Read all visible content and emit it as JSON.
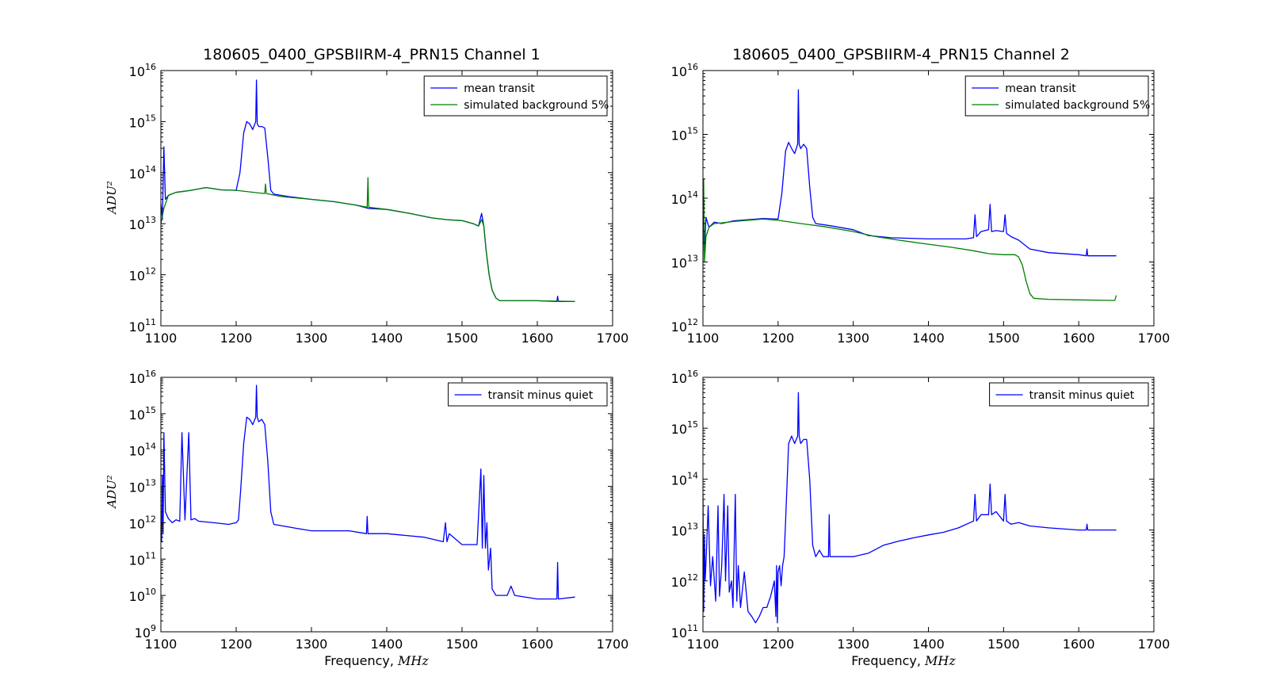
{
  "figure": {
    "xlabel_prefix": "Frequency, ",
    "xlabel_unit": "MHz",
    "ylabel": "ADU²"
  },
  "chart_data": [
    {
      "type": "line",
      "title": "180605_0400_GPSBIIRM-4_PRN15 Channel 1",
      "xlabel": "",
      "ylabel": "ADU²",
      "xlim": [
        1100,
        1700
      ],
      "ylim_exp": [
        11,
        16
      ],
      "yscale": "log",
      "xticks": [
        1100,
        1200,
        1300,
        1400,
        1500,
        1600,
        1700
      ],
      "yticks_exp": [
        11,
        12,
        13,
        14,
        15,
        16
      ],
      "legend": "top-right",
      "series": [
        {
          "name": "mean transit",
          "color": "#0000ff",
          "x": [
            1100,
            1102,
            1104,
            1106,
            1110,
            1120,
            1140,
            1160,
            1180,
            1200,
            1205,
            1210,
            1214,
            1218,
            1222,
            1226,
            1227,
            1228,
            1230,
            1234,
            1238,
            1242,
            1246,
            1250,
            1270,
            1300,
            1330,
            1360,
            1375,
            1400,
            1430,
            1460,
            1480,
            1500,
            1515,
            1522,
            1526,
            1529,
            1532,
            1536,
            1540,
            1545,
            1550,
            1560,
            1600,
            1626,
            1627,
            1628,
            1650
          ],
          "y": [
            25000000000000.0,
            12000000000000.0,
            320000000000000.0,
            30000000000000.0,
            36000000000000.0,
            41000000000000.0,
            45000000000000.0,
            51000000000000.0,
            46000000000000.0,
            45000000000000.0,
            100000000000000.0,
            600000000000000.0,
            1000000000000000.0,
            900000000000000.0,
            700000000000000.0,
            1000000000000000.0,
            6500000000000000.0,
            900000000000000.0,
            800000000000000.0,
            800000000000000.0,
            750000000000000.0,
            200000000000000.0,
            45000000000000.0,
            38000000000000.0,
            34000000000000.0,
            30000000000000.0,
            27000000000000.0,
            23000000000000.0,
            20000000000000.0,
            19000000000000.0,
            16000000000000.0,
            13000000000000.0,
            12000000000000.0,
            11500000000000.0,
            10000000000000.0,
            9000000000000.0,
            16000000000000.0,
            9000000000000.0,
            3000000000000.0,
            1000000000000.0,
            500000000000.0,
            350000000000.0,
            310000000000.0,
            310000000000.0,
            310000000000.0,
            300000000000.0,
            380000000000.0,
            300000000000.0,
            300000000000.0
          ]
        },
        {
          "name": "simulated background 5%",
          "color": "#008000",
          "x": [
            1100,
            1104,
            1110,
            1120,
            1140,
            1160,
            1180,
            1200,
            1230,
            1238,
            1239,
            1240,
            1260,
            1300,
            1330,
            1360,
            1374,
            1375,
            1376,
            1400,
            1430,
            1460,
            1480,
            1500,
            1515,
            1522,
            1526,
            1529,
            1532,
            1536,
            1540,
            1545,
            1550,
            1600,
            1650
          ],
          "y": [
            10000000000000.0,
            20000000000000.0,
            36000000000000.0,
            41000000000000.0,
            45000000000000.0,
            51000000000000.0,
            46000000000000.0,
            45000000000000.0,
            40000000000000.0,
            39000000000000.0,
            60000000000000.0,
            39000000000000.0,
            34000000000000.0,
            30000000000000.0,
            27000000000000.0,
            23000000000000.0,
            21000000000000.0,
            80000000000000.0,
            21000000000000.0,
            19000000000000.0,
            16000000000000.0,
            13000000000000.0,
            12000000000000.0,
            11500000000000.0,
            10000000000000.0,
            9000000000000.0,
            12000000000000.0,
            9000000000000.0,
            3000000000000.0,
            1000000000000.0,
            500000000000.0,
            350000000000.0,
            310000000000.0,
            310000000000.0,
            300000000000.0
          ]
        }
      ]
    },
    {
      "type": "line",
      "title": "180605_0400_GPSBIIRM-4_PRN15 Channel 2",
      "xlabel": "",
      "ylabel": "",
      "xlim": [
        1100,
        1700
      ],
      "ylim_exp": [
        12,
        16
      ],
      "yscale": "log",
      "xticks": [
        1100,
        1200,
        1300,
        1400,
        1500,
        1600,
        1700
      ],
      "yticks_exp": [
        12,
        13,
        14,
        15,
        16
      ],
      "legend": "top-right",
      "series": [
        {
          "name": "mean transit",
          "color": "#0000ff",
          "x": [
            1100,
            1102,
            1104,
            1108,
            1115,
            1125,
            1140,
            1160,
            1180,
            1200,
            1205,
            1210,
            1214,
            1218,
            1222,
            1226,
            1227,
            1228,
            1230,
            1234,
            1238,
            1242,
            1246,
            1250,
            1270,
            1300,
            1320,
            1350,
            1400,
            1450,
            1460,
            1462,
            1464,
            1470,
            1480,
            1482,
            1484,
            1490,
            1500,
            1502,
            1504,
            1510,
            1520,
            1535,
            1560,
            1600,
            1610,
            1611,
            1612,
            1650
          ],
          "y": [
            50000000000000.0,
            15000000000000.0,
            50000000000000.0,
            35000000000000.0,
            42000000000000.0,
            40000000000000.0,
            44000000000000.0,
            46000000000000.0,
            48000000000000.0,
            47000000000000.0,
            120000000000000.0,
            550000000000000.0,
            750000000000000.0,
            600000000000000.0,
            500000000000000.0,
            700000000000000.0,
            5000000000000000.0,
            700000000000000.0,
            600000000000000.0,
            700000000000000.0,
            600000000000000.0,
            150000000000000.0,
            50000000000000.0,
            40000000000000.0,
            37000000000000.0,
            32000000000000.0,
            26000000000000.0,
            24000000000000.0,
            23000000000000.0,
            23000000000000.0,
            24000000000000.0,
            55000000000000.0,
            25000000000000.0,
            30000000000000.0,
            32000000000000.0,
            80000000000000.0,
            30000000000000.0,
            31000000000000.0,
            30000000000000.0,
            55000000000000.0,
            28000000000000.0,
            25000000000000.0,
            22000000000000.0,
            16000000000000.0,
            14000000000000.0,
            13000000000000.0,
            12500000000000.0,
            16000000000000.0,
            12500000000000.0,
            12500000000000.0
          ]
        },
        {
          "name": "simulated background 5%",
          "color": "#008000",
          "x": [
            1100,
            1101,
            1102,
            1104,
            1108,
            1115,
            1125,
            1140,
            1160,
            1180,
            1200,
            1230,
            1260,
            1300,
            1330,
            1360,
            1400,
            1430,
            1460,
            1480,
            1500,
            1510,
            1515,
            1520,
            1525,
            1530,
            1535,
            1540,
            1560,
            1600,
            1648,
            1650
          ],
          "y": [
            10000000000000.0,
            200000000000000.0,
            10000000000000.0,
            25000000000000.0,
            35000000000000.0,
            40000000000000.0,
            41000000000000.0,
            43000000000000.0,
            45000000000000.0,
            47000000000000.0,
            45000000000000.0,
            40000000000000.0,
            36000000000000.0,
            30000000000000.0,
            25000000000000.0,
            22000000000000.0,
            19000000000000.0,
            17000000000000.0,
            15000000000000.0,
            13500000000000.0,
            13000000000000.0,
            13000000000000.0,
            13000000000000.0,
            12000000000000.0,
            9000000000000.0,
            5000000000000.0,
            3200000000000.0,
            2700000000000.0,
            2600000000000.0,
            2550000000000.0,
            2500000000000.0,
            3000000000000.0
          ]
        }
      ]
    },
    {
      "type": "line",
      "title": "",
      "xlabel": "Frequency, MHz",
      "ylabel": "ADU²",
      "xlim": [
        1100,
        1700
      ],
      "ylim_exp": [
        9,
        16
      ],
      "yscale": "log",
      "xticks": [
        1100,
        1200,
        1300,
        1400,
        1500,
        1600,
        1700
      ],
      "yticks_exp": [
        9,
        10,
        11,
        12,
        13,
        14,
        15,
        16
      ],
      "legend": "top-right",
      "series": [
        {
          "name": "transit minus quiet",
          "color": "#0000ff",
          "x": [
            1100,
            1101,
            1102,
            1103,
            1104,
            1106,
            1110,
            1115,
            1120,
            1125,
            1128,
            1132,
            1137,
            1140,
            1145,
            1150,
            1170,
            1190,
            1200,
            1203,
            1206,
            1210,
            1214,
            1218,
            1222,
            1226,
            1227,
            1228,
            1230,
            1234,
            1238,
            1242,
            1246,
            1250,
            1280,
            1300,
            1350,
            1373,
            1374,
            1375,
            1400,
            1450,
            1475,
            1478,
            1480,
            1483,
            1500,
            1520,
            1525,
            1527,
            1529,
            1531,
            1533,
            1535,
            1538,
            1540,
            1545,
            1560,
            1565,
            1570,
            1600,
            1626,
            1627,
            1628,
            1650
          ],
          "y": [
            800000000000.0,
            300000000000.0,
            20000000000000.0,
            500000000000.0,
            300000000000000.0,
            2000000000000.0,
            1300000000000.0,
            1000000000000.0,
            1200000000000.0,
            1100000000000.0,
            300000000000000.0,
            1200000000000.0,
            300000000000000.0,
            1200000000000.0,
            1300000000000.0,
            1100000000000.0,
            1000000000000.0,
            900000000000.0,
            1000000000000.0,
            1200000000000.0,
            8000000000000.0,
            150000000000000.0,
            800000000000000.0,
            700000000000000.0,
            500000000000000.0,
            800000000000000.0,
            6000000000000000.0,
            800000000000000.0,
            600000000000000.0,
            700000000000000.0,
            500000000000000.0,
            50000000000000.0,
            2000000000000.0,
            900000000000.0,
            700000000000.0,
            600000000000.0,
            600000000000.0,
            500000000000.0,
            1500000000000.0,
            500000000000.0,
            500000000000.0,
            400000000000.0,
            300000000000.0,
            1000000000000.0,
            300000000000.0,
            500000000000.0,
            250000000000.0,
            250000000000.0,
            30000000000000.0,
            200000000000.0,
            20000000000000.0,
            200000000000.0,
            1000000000000.0,
            50000000000.0,
            200000000000.0,
            15000000000.0,
            10000000000.0,
            10000000000.0,
            18000000000.0,
            10000000000.0,
            8000000000.0,
            8000000000.0,
            80000000000.0,
            8000000000.0,
            9000000000.0
          ]
        }
      ]
    },
    {
      "type": "line",
      "title": "",
      "xlabel": "Frequency, MHz",
      "ylabel": "",
      "xlim": [
        1100,
        1700
      ],
      "ylim_exp": [
        11,
        16
      ],
      "yscale": "log",
      "xticks": [
        1100,
        1200,
        1300,
        1400,
        1500,
        1600,
        1700
      ],
      "yticks_exp": [
        11,
        12,
        13,
        14,
        15,
        16
      ],
      "legend": "top-right",
      "series": [
        {
          "name": "transit minus quiet",
          "color": "#0000ff",
          "x": [
            1100,
            1101,
            1102,
            1103,
            1105,
            1107,
            1110,
            1113,
            1117,
            1120,
            1122,
            1125,
            1128,
            1130,
            1133,
            1135,
            1138,
            1140,
            1143,
            1145,
            1147,
            1150,
            1155,
            1160,
            1165,
            1170,
            1175,
            1180,
            1185,
            1190,
            1195,
            1197,
            1198,
            1199,
            1200,
            1202,
            1204,
            1206,
            1208,
            1210,
            1214,
            1218,
            1222,
            1226,
            1227,
            1228,
            1230,
            1234,
            1238,
            1242,
            1246,
            1250,
            1255,
            1260,
            1267,
            1268,
            1269,
            1280,
            1290,
            1300,
            1320,
            1340,
            1360,
            1380,
            1400,
            1420,
            1440,
            1460,
            1462,
            1464,
            1470,
            1480,
            1482,
            1484,
            1490,
            1500,
            1502,
            1504,
            1510,
            1520,
            1535,
            1560,
            1600,
            1610,
            1611,
            1612,
            1650
          ],
          "y": [
            50000000000000.0,
            250000000000.0,
            8000000000000.0,
            1000000000000.0,
            5000000000000.0,
            30000000000000.0,
            800000000000.0,
            3000000000000.0,
            400000000000.0,
            30000000000000.0,
            500000000000.0,
            2000000000000.0,
            50000000000000.0,
            1000000000000.0,
            30000000000000.0,
            600000000000.0,
            1000000000000.0,
            300000000000.0,
            50000000000000.0,
            400000000000.0,
            2000000000000.0,
            300000000000.0,
            1500000000000.0,
            250000000000.0,
            200000000000.0,
            150000000000.0,
            200000000000.0,
            300000000000.0,
            300000000000.0,
            500000000000.0,
            1000000000000.0,
            200000000000.0,
            2000000000000.0,
            150000000000.0,
            1500000000000.0,
            2000000000000.0,
            800000000000.0,
            2000000000000.0,
            3000000000000.0,
            15000000000000.0,
            500000000000000.0,
            700000000000000.0,
            500000000000000.0,
            700000000000000.0,
            5000000000000000.0,
            700000000000000.0,
            500000000000000.0,
            600000000000000.0,
            600000000000000.0,
            100000000000000.0,
            5000000000000.0,
            3000000000000.0,
            4000000000000.0,
            3000000000000.0,
            3000000000000.0,
            20000000000000.0,
            3000000000000.0,
            3000000000000.0,
            3000000000000.0,
            3000000000000.0,
            3500000000000.0,
            5000000000000.0,
            6000000000000.0,
            7000000000000.0,
            8000000000000.0,
            9000000000000.0,
            11000000000000.0,
            15000000000000.0,
            50000000000000.0,
            15000000000000.0,
            20000000000000.0,
            20000000000000.0,
            80000000000000.0,
            20000000000000.0,
            23000000000000.0,
            15000000000000.0,
            50000000000000.0,
            15000000000000.0,
            13000000000000.0,
            14000000000000.0,
            12000000000000.0,
            11000000000000.0,
            10000000000000.0,
            10000000000000.0,
            13000000000000.0,
            10000000000000.0,
            10000000000000.0
          ]
        }
      ]
    }
  ]
}
